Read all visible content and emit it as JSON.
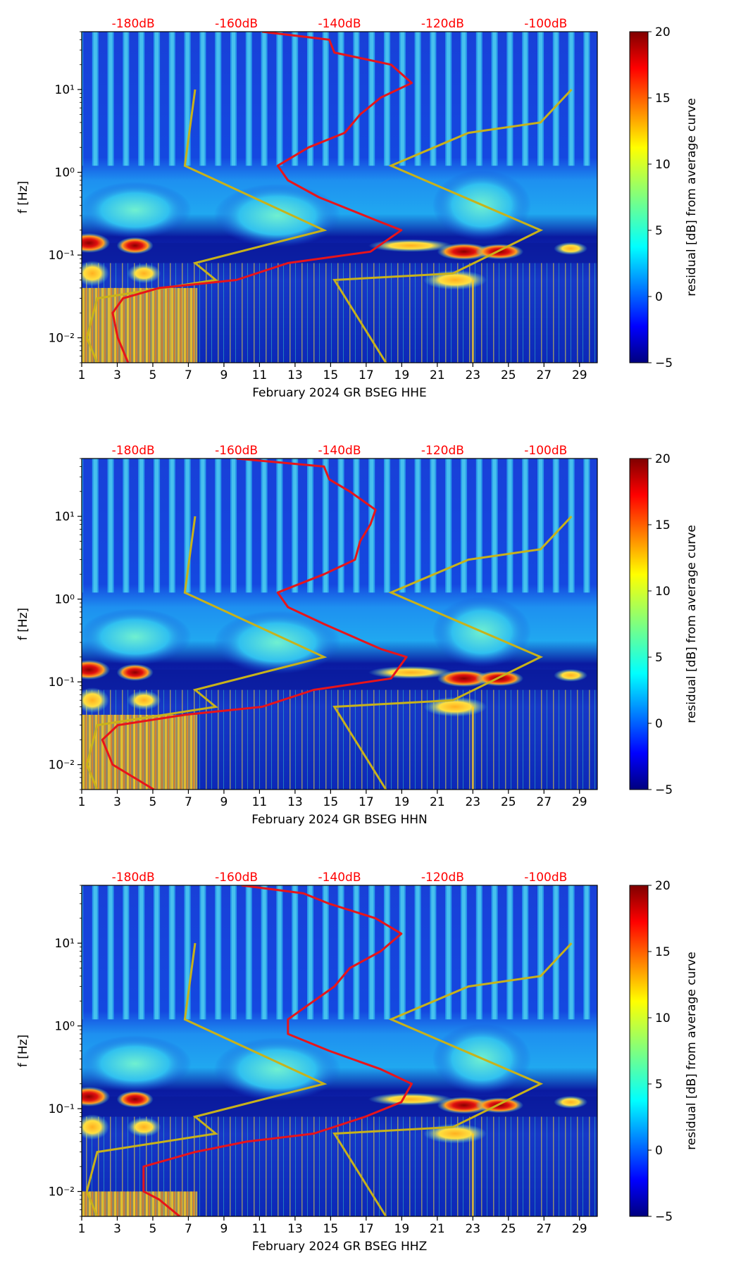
{
  "figure": {
    "colors": {
      "median_curve": "#e8141a",
      "noise_model": "#c8b21a",
      "top_axis_labels": "#ff0000",
      "background_deep": "#00007f"
    }
  },
  "chart_data": [
    {
      "type": "heatmap",
      "component": "HHE",
      "xlabel": "February 2024 GR BSEG  HHE",
      "ylabel": "f [Hz]",
      "x_ticks": [
        "1",
        "3",
        "5",
        "7",
        "9",
        "11",
        "13",
        "15",
        "17",
        "19",
        "21",
        "23",
        "25",
        "27",
        "29"
      ],
      "x_range": [
        1,
        30
      ],
      "y_range": [
        0.005,
        50
      ],
      "y_scale": "log",
      "y_ticks": [
        "10⁻²",
        "10⁻¹",
        "10⁰",
        "10¹"
      ],
      "top_axis": [
        "-180dB",
        "-160dB",
        "-140dB",
        "-120dB",
        "-100dB"
      ],
      "top_axis_range_db": [
        -190,
        -90
      ],
      "colorbar": {
        "label": "residual [dB] from average curve",
        "range": [
          -5,
          20
        ],
        "ticks": [
          "−5",
          "0",
          "5",
          "10",
          "15",
          "20"
        ]
      },
      "median_curve_db": [
        [
          -181,
          0.005
        ],
        [
          -183,
          0.01
        ],
        [
          -184,
          0.02
        ],
        [
          -182,
          0.03
        ],
        [
          -175,
          0.04
        ],
        [
          -160,
          0.05
        ],
        [
          -150,
          0.08
        ],
        [
          -134,
          0.11
        ],
        [
          -128,
          0.2
        ],
        [
          -132,
          0.25
        ],
        [
          -144,
          0.5
        ],
        [
          -150,
          0.8
        ],
        [
          -152,
          1.2
        ],
        [
          -146,
          2
        ],
        [
          -139,
          3
        ],
        [
          -136,
          5
        ],
        [
          -132,
          8
        ],
        [
          -126,
          12
        ],
        [
          -130,
          20
        ],
        [
          -141,
          28
        ],
        [
          -142,
          40
        ],
        [
          -155,
          50
        ]
      ],
      "noise_models": {
        "low": [
          [
            -187,
            0.005
          ],
          [
            -189,
            0.01
          ],
          [
            -187,
            0.03
          ],
          [
            -164,
            0.05
          ],
          [
            -168,
            0.08
          ],
          [
            -143,
            0.2
          ],
          [
            -170,
            1.2
          ],
          [
            -168,
            10
          ]
        ],
        "high": [
          [
            -131,
            0.005
          ],
          [
            -141,
            0.05
          ],
          [
            -118,
            0.06
          ],
          [
            -101,
            0.2
          ],
          [
            -130,
            1.2
          ],
          [
            -115,
            3
          ],
          [
            -101,
            4
          ],
          [
            -95,
            10
          ]
        ]
      }
    },
    {
      "type": "heatmap",
      "component": "HHN",
      "xlabel": "February 2024 GR BSEG  HHN",
      "ylabel": "f [Hz]",
      "x_ticks": [
        "1",
        "3",
        "5",
        "7",
        "9",
        "11",
        "13",
        "15",
        "17",
        "19",
        "21",
        "23",
        "25",
        "27",
        "29"
      ],
      "x_range": [
        1,
        30
      ],
      "y_range": [
        0.005,
        50
      ],
      "y_scale": "log",
      "y_ticks": [
        "10⁻²",
        "10⁻¹",
        "10⁰",
        "10¹"
      ],
      "top_axis": [
        "-180dB",
        "-160dB",
        "-140dB",
        "-120dB",
        "-100dB"
      ],
      "top_axis_range_db": [
        -190,
        -90
      ],
      "colorbar": {
        "label": "residual [dB] from average curve",
        "range": [
          -5,
          20
        ],
        "ticks": [
          "−5",
          "0",
          "5",
          "10",
          "15",
          "20"
        ]
      },
      "median_curve_db": [
        [
          -176,
          0.005
        ],
        [
          -184,
          0.01
        ],
        [
          -186,
          0.02
        ],
        [
          -183,
          0.03
        ],
        [
          -170,
          0.04
        ],
        [
          -155,
          0.05
        ],
        [
          -145,
          0.08
        ],
        [
          -130,
          0.11
        ],
        [
          -127,
          0.2
        ],
        [
          -132,
          0.25
        ],
        [
          -143,
          0.5
        ],
        [
          -150,
          0.8
        ],
        [
          -152,
          1.2
        ],
        [
          -143,
          2
        ],
        [
          -137,
          3
        ],
        [
          -136,
          5
        ],
        [
          -134,
          8
        ],
        [
          -133,
          12
        ],
        [
          -138,
          20
        ],
        [
          -142,
          28
        ],
        [
          -143,
          40
        ],
        [
          -160,
          50
        ]
      ],
      "noise_models": {
        "low": [
          [
            -187,
            0.005
          ],
          [
            -189,
            0.01
          ],
          [
            -187,
            0.03
          ],
          [
            -164,
            0.05
          ],
          [
            -168,
            0.08
          ],
          [
            -143,
            0.2
          ],
          [
            -170,
            1.2
          ],
          [
            -168,
            10
          ]
        ],
        "high": [
          [
            -131,
            0.005
          ],
          [
            -141,
            0.05
          ],
          [
            -118,
            0.06
          ],
          [
            -101,
            0.2
          ],
          [
            -130,
            1.2
          ],
          [
            -115,
            3
          ],
          [
            -101,
            4
          ],
          [
            -95,
            10
          ]
        ]
      }
    },
    {
      "type": "heatmap",
      "component": "HHZ",
      "xlabel": "February 2024 GR BSEG  HHZ",
      "ylabel": "f [Hz]",
      "x_ticks": [
        "1",
        "3",
        "5",
        "7",
        "9",
        "11",
        "13",
        "15",
        "17",
        "19",
        "21",
        "23",
        "25",
        "27",
        "29"
      ],
      "x_range": [
        1,
        30
      ],
      "y_range": [
        0.005,
        50
      ],
      "y_scale": "log",
      "y_ticks": [
        "10⁻²",
        "10⁻¹",
        "10⁰",
        "10¹"
      ],
      "top_axis": [
        "-180dB",
        "-160dB",
        "-140dB",
        "-120dB",
        "-100dB"
      ],
      "top_axis_range_db": [
        -190,
        -90
      ],
      "colorbar": {
        "label": "residual [dB] from average curve",
        "range": [
          -5,
          20
        ],
        "ticks": [
          "−5",
          "0",
          "5",
          "10",
          "15",
          "20"
        ]
      },
      "median_curve_db": [
        [
          -171,
          0.005
        ],
        [
          -175,
          0.008
        ],
        [
          -178,
          0.01
        ],
        [
          -178,
          0.02
        ],
        [
          -168,
          0.03
        ],
        [
          -158,
          0.04
        ],
        [
          -145,
          0.05
        ],
        [
          -135,
          0.08
        ],
        [
          -128,
          0.12
        ],
        [
          -126,
          0.2
        ],
        [
          -132,
          0.3
        ],
        [
          -142,
          0.5
        ],
        [
          -150,
          0.8
        ],
        [
          -150,
          1.2
        ],
        [
          -145,
          2
        ],
        [
          -141,
          3
        ],
        [
          -138,
          5
        ],
        [
          -132,
          8
        ],
        [
          -128,
          13
        ],
        [
          -133,
          20
        ],
        [
          -142,
          30
        ],
        [
          -147,
          40
        ],
        [
          -159,
          50
        ]
      ],
      "noise_models": {
        "low": [
          [
            -187,
            0.005
          ],
          [
            -189,
            0.01
          ],
          [
            -187,
            0.03
          ],
          [
            -164,
            0.05
          ],
          [
            -168,
            0.08
          ],
          [
            -143,
            0.2
          ],
          [
            -170,
            1.2
          ],
          [
            -168,
            10
          ]
        ],
        "high": [
          [
            -131,
            0.005
          ],
          [
            -141,
            0.05
          ],
          [
            -118,
            0.06
          ],
          [
            -101,
            0.2
          ],
          [
            -130,
            1.2
          ],
          [
            -115,
            3
          ],
          [
            -101,
            4
          ],
          [
            -95,
            10
          ]
        ]
      }
    }
  ]
}
